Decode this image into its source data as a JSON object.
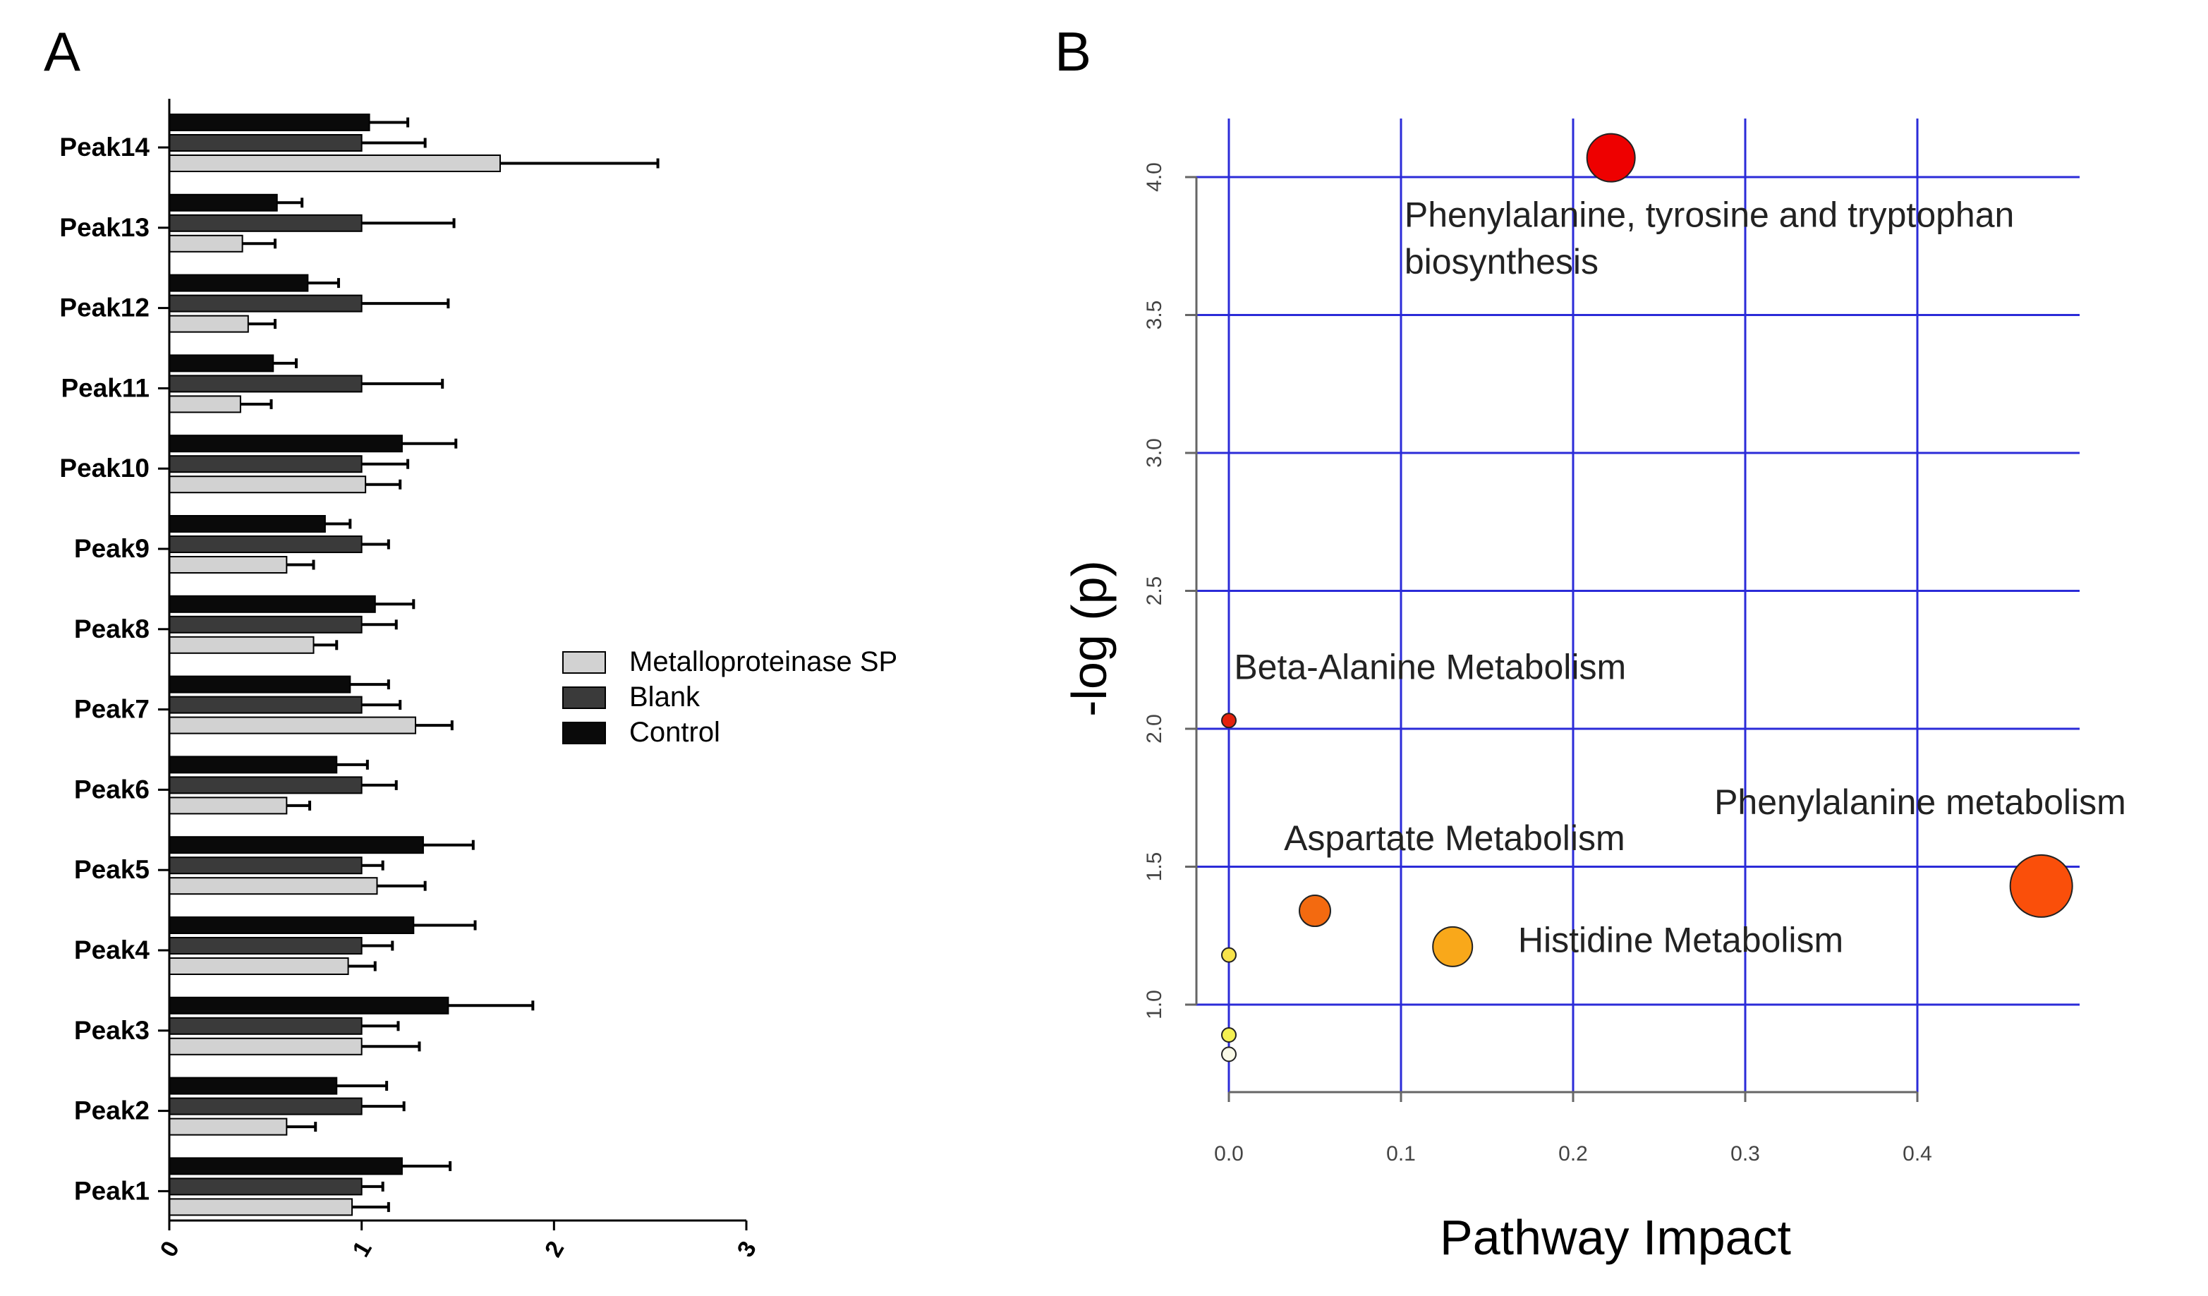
{
  "chart_data": [
    {
      "panel": "A",
      "type": "bar",
      "orientation": "horizontal",
      "categories": [
        "Peak14",
        "Peak13",
        "Peak12",
        "Peak11",
        "Peak10",
        "Peak9",
        "Peak8",
        "Peak7",
        "Peak6",
        "Peak5",
        "Peak4",
        "Peak3",
        "Peak2",
        "Peak1"
      ],
      "series": [
        {
          "name": "Control",
          "color": "#0a0a0a",
          "values": [
            1.04,
            0.56,
            0.72,
            0.54,
            1.21,
            0.81,
            1.07,
            0.94,
            0.87,
            1.32,
            1.27,
            1.45,
            0.87,
            1.21
          ],
          "errors": [
            0.2,
            0.13,
            0.16,
            0.12,
            0.28,
            0.13,
            0.2,
            0.2,
            0.16,
            0.26,
            0.32,
            0.44,
            0.26,
            0.25
          ]
        },
        {
          "name": "Blank",
          "color": "#3a3a3a",
          "values": [
            1.0,
            1.0,
            1.0,
            1.0,
            1.0,
            1.0,
            1.0,
            1.0,
            1.0,
            1.0,
            1.0,
            1.0,
            1.0,
            1.0
          ],
          "errors": [
            0.33,
            0.48,
            0.45,
            0.42,
            0.24,
            0.14,
            0.18,
            0.2,
            0.18,
            0.11,
            0.16,
            0.19,
            0.22,
            0.11
          ]
        },
        {
          "name": "Metalloproteinase SP",
          "color": "#d2d2d2",
          "values": [
            1.72,
            0.38,
            0.41,
            0.37,
            1.02,
            0.61,
            0.75,
            1.28,
            0.61,
            1.08,
            0.93,
            1.0,
            0.61,
            0.95
          ],
          "errors": [
            0.82,
            0.17,
            0.14,
            0.16,
            0.18,
            0.14,
            0.12,
            0.19,
            0.12,
            0.25,
            0.14,
            0.3,
            0.15,
            0.19
          ]
        }
      ],
      "xlim": [
        0,
        3
      ],
      "xticks": [
        "0",
        "1",
        "2",
        "3"
      ],
      "legend": [
        "Metalloproteinase SP",
        "Blank",
        "Control"
      ]
    },
    {
      "panel": "B",
      "type": "scatter",
      "xlabel": "Pathway Impact",
      "ylabel": "-log (p)",
      "xticks": [
        "0.0",
        "0.1",
        "0.2",
        "0.3",
        "0.4"
      ],
      "yticks": [
        "1.0",
        "1.5",
        "2.0",
        "2.5",
        "3.0",
        "3.5",
        "4.0"
      ],
      "xlim": [
        -0.02,
        0.49
      ],
      "ylim": [
        0.68,
        4.12
      ],
      "grid": true,
      "points": [
        {
          "x": 0.222,
          "y": 4.07,
          "size": 17,
          "color": "#ee0000"
        },
        {
          "x": 0.0,
          "y": 2.03,
          "size": 5,
          "color": "#e4220d"
        },
        {
          "x": 0.05,
          "y": 1.34,
          "size": 11,
          "color": "#f36a10"
        },
        {
          "x": 0.13,
          "y": 1.21,
          "size": 14,
          "color": "#f9a81a"
        },
        {
          "x": 0.472,
          "y": 1.43,
          "size": 22,
          "color": "#fa4f0a"
        },
        {
          "x": 0.0,
          "y": 1.18,
          "size": 5,
          "color": "#f7e34a"
        },
        {
          "x": 0.0,
          "y": 0.89,
          "size": 5,
          "color": "#f4f051"
        },
        {
          "x": 0.0,
          "y": 0.82,
          "size": 5,
          "color": "#fafae8"
        }
      ],
      "annotations": [
        {
          "text": "Phenylalanine, tyrosine and tryptophan",
          "x": 0.102,
          "y": 3.82
        },
        {
          "text": "biosynthesis",
          "x": 0.102,
          "y": 3.65
        },
        {
          "text": "Beta-Alanine Metabolism",
          "x": 0.003,
          "y": 2.18
        },
        {
          "text": "Aspartate Metabolism",
          "x": 0.032,
          "y": 1.56
        },
        {
          "text": "Histidine Metabolism",
          "x": 0.168,
          "y": 1.19
        },
        {
          "text": "Phenylalanine metabolism",
          "x": 0.282,
          "y": 1.69
        }
      ]
    }
  ],
  "panels": {
    "a_label": "A",
    "b_label": "B"
  }
}
